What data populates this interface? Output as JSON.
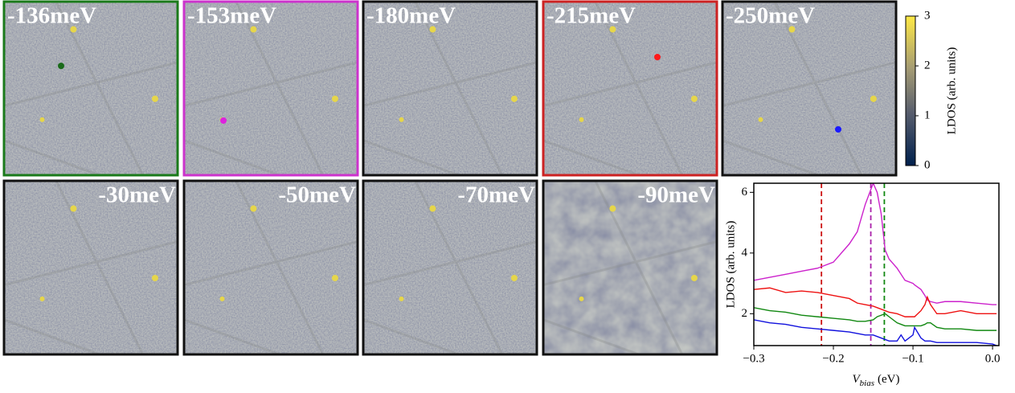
{
  "panels": [
    {
      "label": "-136meV",
      "border": "#1a7a1a",
      "marker": "#1a6a1a"
    },
    {
      "label": "-153meV",
      "border": "#cc33cc",
      "marker": "#dd22dd"
    },
    {
      "label": "-180meV",
      "border": "#111111"
    },
    {
      "label": "-215meV",
      "border": "#cc2222",
      "marker": "#ff1a1a"
    },
    {
      "label": "-250meV",
      "border": "#111111",
      "marker": "#1a1aff"
    },
    {
      "label": "-30meV",
      "border": "#111111"
    },
    {
      "label": "-50meV",
      "border": "#111111"
    },
    {
      "label": "-70meV",
      "border": "#111111"
    },
    {
      "label": "-90meV",
      "border": "#111111"
    }
  ],
  "colorbar": {
    "label": "LDOS (arb. units)",
    "lim": [
      0,
      3
    ],
    "ticks": [
      0,
      1,
      2,
      3
    ]
  },
  "chart_data": {
    "type": "line",
    "ylabel": "LDOS (arb. units)",
    "xlabel_symbol": "V",
    "xlabel_subscript": "bias",
    "xlabel_unit": "(eV)",
    "xlim": [
      -0.3,
      0.008
    ],
    "ylim": [
      0.95,
      6.3
    ],
    "xticks": [
      {
        "value": -0.3,
        "label": "−0.3"
      },
      {
        "value": -0.2,
        "label": "−0.2"
      },
      {
        "value": -0.1,
        "label": "−0.1"
      },
      {
        "value": 0,
        "label": "0.0"
      }
    ],
    "yticks": [
      2,
      4,
      6
    ],
    "x": [
      -0.3,
      -0.28,
      -0.26,
      -0.24,
      -0.22,
      -0.2,
      -0.18,
      -0.17,
      -0.16,
      -0.15,
      -0.145,
      -0.14,
      -0.135,
      -0.13,
      -0.12,
      -0.115,
      -0.11,
      -0.1,
      -0.098,
      -0.09,
      -0.085,
      -0.082,
      -0.078,
      -0.07,
      -0.06,
      -0.04,
      -0.02,
      0.0,
      0.005
    ],
    "series": [
      {
        "color": "#cc22cc",
        "values": [
          3.1,
          3.2,
          3.3,
          3.4,
          3.5,
          3.7,
          4.3,
          4.7,
          5.6,
          6.3,
          6.0,
          5.3,
          4.1,
          3.8,
          3.5,
          3.3,
          3.1,
          3.0,
          2.95,
          2.8,
          2.6,
          2.45,
          2.4,
          2.35,
          2.4,
          2.4,
          2.35,
          2.3,
          2.3
        ]
      },
      {
        "color": "#ee1111",
        "values": [
          2.8,
          2.85,
          2.7,
          2.75,
          2.7,
          2.6,
          2.5,
          2.35,
          2.3,
          2.25,
          2.2,
          2.15,
          2.1,
          2.05,
          2.0,
          1.95,
          1.9,
          1.9,
          1.9,
          2.1,
          2.3,
          2.55,
          2.3,
          2.0,
          2.0,
          2.1,
          2.0,
          2.0,
          2.0
        ]
      },
      {
        "color": "#118811",
        "values": [
          2.2,
          2.1,
          2.05,
          1.95,
          1.9,
          1.85,
          1.8,
          1.75,
          1.75,
          1.8,
          1.9,
          1.95,
          2.0,
          1.9,
          1.7,
          1.65,
          1.6,
          1.6,
          1.6,
          1.6,
          1.65,
          1.7,
          1.7,
          1.55,
          1.5,
          1.5,
          1.45,
          1.45,
          1.45
        ]
      },
      {
        "color": "#1111dd",
        "values": [
          1.8,
          1.7,
          1.65,
          1.55,
          1.5,
          1.45,
          1.4,
          1.35,
          1.3,
          1.3,
          1.25,
          1.2,
          1.15,
          1.1,
          1.1,
          1.3,
          1.1,
          1.3,
          1.55,
          1.2,
          1.1,
          1.1,
          1.1,
          1.05,
          1.05,
          1.05,
          1.05,
          1.0,
          0.95
        ]
      }
    ],
    "vlines": [
      {
        "x": -0.215,
        "color": "#cc1111"
      },
      {
        "x": -0.153,
        "color": "#aa22aa"
      },
      {
        "x": -0.136,
        "color": "#118811"
      }
    ]
  }
}
